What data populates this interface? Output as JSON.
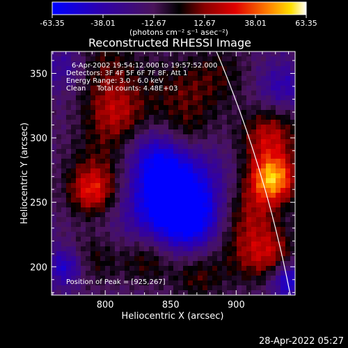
{
  "chart_data": {
    "type": "heatmap",
    "title": "Reconstructed RHESSI Image",
    "xlabel": "Heliocentric X (arcsec)",
    "ylabel": "Heliocentric Y (arcsec)",
    "xlim": [
      759,
      945
    ],
    "ylim": [
      178,
      367
    ],
    "x_ticks": [
      800,
      850,
      900
    ],
    "y_ticks": [
      200,
      250,
      300,
      350
    ],
    "colorbar": {
      "min": -63.35,
      "max": 63.35,
      "tick_labels": [
        "-63.35",
        "-38.01",
        "-12.67",
        "12.67",
        "38.01",
        "63.35"
      ],
      "units_label": "(photons cm⁻² s⁻¹ asec⁻²)"
    },
    "info_lines": [
      "6-Apr-2002 19:54:12.000 to 19:57:52.000",
      "Detectors: 3F 4F 5F 6F 7F 8F, Att 1",
      "Energy Range: 3.0 - 6.0 keV",
      "Clean     Total counts: 4.48E+03"
    ],
    "peak_label": "Position of Peak = [925,267]",
    "peak_position": [
      925,
      267
    ],
    "grid": false,
    "image_sources": [
      {
        "x": 928,
        "y": 268,
        "sigma": 13,
        "amp": 63
      },
      {
        "x": 925,
        "y": 300,
        "sigma": 16,
        "amp": 38
      },
      {
        "x": 910,
        "y": 245,
        "sigma": 16,
        "amp": 22
      },
      {
        "x": 790,
        "y": 258,
        "sigma": 13,
        "amp": 38
      },
      {
        "x": 800,
        "y": 280,
        "sigma": 22,
        "amp": 22
      },
      {
        "x": 808,
        "y": 320,
        "sigma": 16,
        "amp": 30
      },
      {
        "x": 860,
        "y": 332,
        "sigma": 22,
        "amp": 24
      },
      {
        "x": 862,
        "y": 303,
        "sigma": 12,
        "amp": 12
      },
      {
        "x": 800,
        "y": 355,
        "sigma": 20,
        "amp": 22
      },
      {
        "x": 890,
        "y": 352,
        "sigma": 16,
        "amp": 14
      },
      {
        "x": 910,
        "y": 215,
        "sigma": 20,
        "amp": 26
      },
      {
        "x": 928,
        "y": 208,
        "sigma": 14,
        "amp": 22
      },
      {
        "x": 870,
        "y": 192,
        "sigma": 14,
        "amp": 22
      },
      {
        "x": 832,
        "y": 205,
        "sigma": 14,
        "amp": 24
      },
      {
        "x": 790,
        "y": 205,
        "sigma": 15,
        "amp": 20
      },
      {
        "x": 850,
        "y": 255,
        "sigma": 24,
        "amp": -60
      },
      {
        "x": 866,
        "y": 235,
        "sigma": 16,
        "amp": -30
      },
      {
        "x": 838,
        "y": 285,
        "sigma": 15,
        "amp": -25
      },
      {
        "x": 770,
        "y": 200,
        "sigma": 10,
        "amp": -35
      },
      {
        "x": 940,
        "y": 190,
        "sigma": 10,
        "amp": -40
      },
      {
        "x": 770,
        "y": 355,
        "sigma": 12,
        "amp": -20
      },
      {
        "x": 935,
        "y": 340,
        "sigma": 12,
        "amp": -22
      }
    ],
    "limb_arc": {
      "center_x": 0,
      "center_y": 0,
      "radius": 958
    }
  },
  "footer": {
    "timestamp": "28-Apr-2022 05:27"
  },
  "colors": {
    "background": "#000000",
    "foreground": "#ffffff"
  }
}
